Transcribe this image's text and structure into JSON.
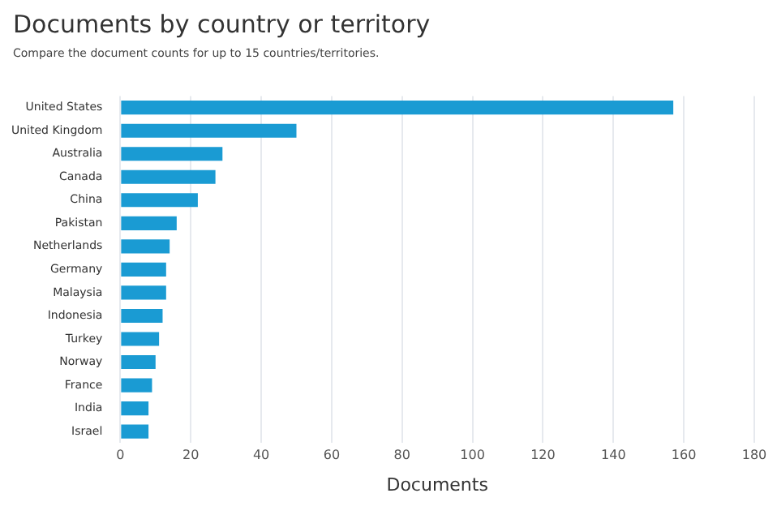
{
  "chart_data": {
    "type": "bar",
    "orientation": "horizontal",
    "title": "Documents by country or territory",
    "subtitle": "Compare the document counts for up to 15 countries/territories.",
    "xlabel": "Documents",
    "categories": [
      "United States",
      "United Kingdom",
      "Australia",
      "Canada",
      "China",
      "Pakistan",
      "Netherlands",
      "Germany",
      "Malaysia",
      "Indonesia",
      "Turkey",
      "Norway",
      "France",
      "India",
      "Israel"
    ],
    "values": [
      157,
      50,
      29,
      27,
      22,
      16,
      14,
      13,
      13,
      12,
      11,
      10,
      9,
      8,
      8
    ],
    "color": "#1a9bd3",
    "xlim": [
      0,
      180
    ],
    "xticks": [
      0,
      20,
      40,
      60,
      80,
      100,
      120,
      140,
      160,
      180
    ],
    "grid": "x",
    "legend": false
  }
}
